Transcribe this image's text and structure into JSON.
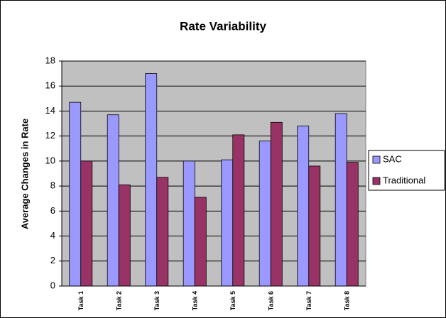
{
  "chart_data": {
    "type": "bar",
    "title": "Rate Variability",
    "y_label": "Average Changes in Rate",
    "categories": [
      "Task 1",
      "Task 2",
      "Task 3",
      "Task 4",
      "Task 5",
      "Task 6",
      "Task 7",
      "Task 8"
    ],
    "series": [
      {
        "name": "SAC",
        "color": "#9999ff",
        "values": [
          14.7,
          13.7,
          17.0,
          10.0,
          10.1,
          11.6,
          12.8,
          13.8
        ]
      },
      {
        "name": "Traditional",
        "color": "#993366",
        "values": [
          10.0,
          8.1,
          8.7,
          7.1,
          12.1,
          13.1,
          9.6,
          9.9
        ]
      }
    ],
    "ylim": [
      0,
      18
    ],
    "yticks": [
      0,
      2,
      4,
      6,
      8,
      10,
      12,
      14,
      16,
      18
    ],
    "grid": true,
    "legend": "right"
  }
}
